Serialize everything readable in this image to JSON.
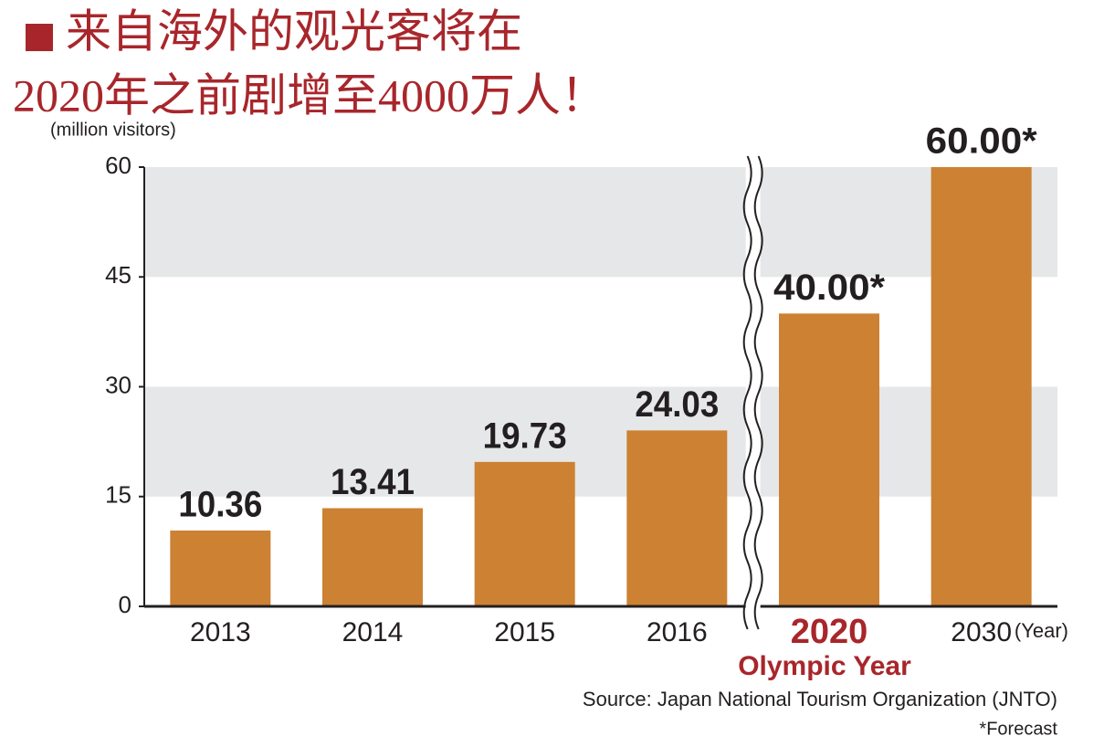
{
  "chart_data": {
    "type": "bar",
    "title": [
      "来自海外的观光客将在",
      "2020年之前剧增至4000万人！"
    ],
    "y_label": "(million visitors)",
    "x_label": "(Year)",
    "categories": [
      "2013",
      "2014",
      "2015",
      "2016",
      "2020",
      "2030"
    ],
    "values": [
      10.36,
      13.41,
      19.73,
      24.03,
      40,
      60
    ],
    "value_labels": [
      "10.36",
      "13.41",
      "19.73",
      "24.03",
      "40.00*",
      "60.00*"
    ],
    "color": "#cc8133",
    "ylim": [
      0,
      60
    ],
    "yticks": [
      0,
      15,
      30,
      45,
      60
    ],
    "grid": "bands",
    "band_color": "#e6e7e8",
    "axis_break_after": "2016",
    "annotations": [
      {
        "text": "Olympic Year",
        "category": "2020",
        "color": "#a8262b"
      }
    ],
    "source": "Source: Japan National Tourism Organization (JNTO)",
    "footnote": "*Forecast"
  }
}
